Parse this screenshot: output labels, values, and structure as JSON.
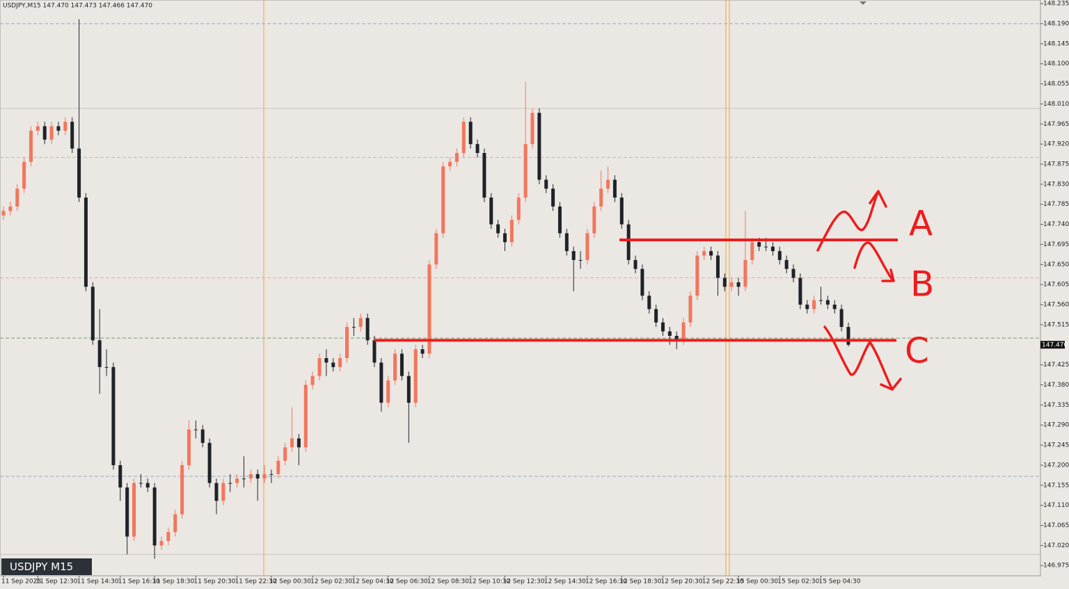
{
  "chart_data": {
    "type": "candlestick",
    "header": "USDJPY,M15 147.470 147.473 147.466 147.470",
    "symbol_label": "USDJPY M15",
    "up_color": "#f2765c",
    "down_color": "#1f2329",
    "ylim": [
      146.952,
      148.243
    ],
    "yticks": [
      148.235,
      {
        "value": 148.19,
        "label": "148.190"
      },
      148.145,
      {
        "value": 148.1,
        "label": "148.100"
      },
      148.055,
      {
        "value": 148.01,
        "label": "148.010"
      },
      147.965,
      {
        "value": 147.92,
        "label": "147.920"
      },
      147.875,
      {
        "value": 147.83,
        "label": "147.830"
      },
      147.785,
      {
        "value": 147.74,
        "label": "147.740"
      },
      147.695,
      {
        "value": 147.65,
        "label": "147.650"
      },
      147.605,
      {
        "value": 147.56,
        "label": "147.560"
      },
      147.515,
      147.425,
      {
        "value": 147.38,
        "label": "147.380"
      },
      147.335,
      {
        "value": 147.29,
        "label": "147.290"
      },
      147.245,
      {
        "value": 147.2,
        "label": "147.200"
      },
      147.155,
      {
        "value": 147.11,
        "label": "147.110"
      },
      147.065,
      {
        "value": 147.02,
        "label": "147.020"
      },
      146.975
    ],
    "current_price": {
      "value": 147.47,
      "label": "147.470"
    },
    "hlines": [
      {
        "value": 148.19,
        "color": "#8fa9c2",
        "dash": true
      },
      {
        "value": 148.0,
        "color": "#c9c4bf",
        "dash": false
      },
      {
        "value": 147.89,
        "color": "#e8a6b0",
        "dash": true
      },
      {
        "value": 147.62,
        "color": "#e8a6b0",
        "dash": true
      },
      {
        "value": 147.485,
        "color": "#6aa36a",
        "dash": true
      },
      {
        "value": 147.175,
        "color": "#8fa9c2",
        "dash": true
      },
      {
        "value": 147.0,
        "color": "#c9c4bf",
        "dash": false
      }
    ],
    "annotations": [
      {
        "label": "A",
        "value": 147.705
      },
      {
        "label": "B"
      },
      {
        "label": "C",
        "value": 147.48
      }
    ],
    "annotation_color": "#ee1c1c",
    "categories": [
      "11 Sep 2025",
      null,
      null,
      null,
      null,
      "11 Sep 12:30",
      null,
      null,
      null,
      null,
      null,
      "11 Sep 14:30",
      null,
      null,
      null,
      null,
      null,
      "11 Sep 16:30",
      null,
      null,
      null,
      null,
      "11 Sep 18:30",
      null,
      null,
      null,
      null,
      null,
      "11 Sep 20:30",
      null,
      null,
      null,
      null,
      null,
      "11 Sep 22:30",
      null,
      null,
      null,
      null,
      "12 Sep 00:30",
      null,
      null,
      null,
      null,
      null,
      "12 Sep 02:30",
      null,
      null,
      null,
      null,
      null,
      "12 Sep 04:30",
      null,
      null,
      null,
      null,
      "12 Sep 06:30",
      null,
      null,
      null,
      null,
      null,
      "12 Sep 08:30",
      null,
      null,
      null,
      null,
      null,
      "12 Sep 10:30",
      null,
      null,
      null,
      null,
      "12 Sep 12:30",
      null,
      null,
      null,
      null,
      null,
      "12 Sep 14:30",
      null,
      null,
      null,
      null,
      null,
      "12 Sep 16:30",
      null,
      null,
      null,
      null,
      "12 Sep 18:30",
      null,
      null,
      null,
      null,
      null,
      "12 Sep 20:30",
      null,
      null,
      null,
      null,
      null,
      "12 Sep 22:30",
      null,
      null,
      null,
      null,
      "15 Sep 00:30",
      null,
      null,
      null,
      null,
      null,
      "15 Sep 02:30",
      null,
      null,
      null,
      null,
      null,
      "15 Sep 04:30",
      null,
      null,
      null,
      null
    ],
    "ohlc": [
      [
        147.76,
        147.78,
        147.75,
        147.77
      ],
      [
        147.77,
        147.79,
        147.76,
        147.78
      ],
      [
        147.78,
        147.83,
        147.77,
        147.82
      ],
      [
        147.82,
        147.89,
        147.81,
        147.88
      ],
      [
        147.88,
        147.96,
        147.87,
        147.95
      ],
      [
        147.95,
        147.97,
        147.94,
        147.96
      ],
      [
        147.96,
        147.97,
        147.92,
        147.93
      ],
      [
        147.93,
        147.97,
        147.92,
        147.96
      ],
      [
        147.96,
        147.97,
        147.94,
        147.95
      ],
      [
        147.95,
        147.98,
        147.94,
        147.97
      ],
      [
        147.97,
        147.98,
        147.9,
        147.91
      ],
      [
        147.91,
        148.2,
        147.79,
        147.8
      ],
      [
        147.8,
        147.81,
        147.59,
        147.6
      ],
      [
        147.6,
        147.61,
        147.47,
        147.48
      ],
      [
        147.48,
        147.55,
        147.36,
        147.42
      ],
      [
        147.42,
        147.46,
        147.4,
        147.42
      ],
      [
        147.42,
        147.43,
        147.19,
        147.2
      ],
      [
        147.2,
        147.21,
        147.12,
        147.15
      ],
      [
        147.15,
        147.16,
        147.0,
        147.04
      ],
      [
        147.04,
        147.17,
        147.03,
        147.16
      ],
      [
        147.16,
        147.18,
        147.15,
        147.16
      ],
      [
        147.16,
        147.17,
        147.14,
        147.15
      ],
      [
        147.15,
        147.16,
        146.99,
        147.02
      ],
      [
        147.02,
        147.04,
        147.01,
        147.03
      ],
      [
        147.03,
        147.06,
        147.02,
        147.05
      ],
      [
        147.05,
        147.1,
        147.04,
        147.09
      ],
      [
        147.09,
        147.21,
        147.08,
        147.2
      ],
      [
        147.2,
        147.3,
        147.19,
        147.28
      ],
      [
        147.28,
        147.3,
        147.26,
        147.28
      ],
      [
        147.28,
        147.29,
        147.24,
        147.25
      ],
      [
        147.25,
        147.26,
        147.15,
        147.16
      ],
      [
        147.16,
        147.17,
        147.09,
        147.12
      ],
      [
        147.12,
        147.17,
        147.11,
        147.16
      ],
      [
        147.16,
        147.18,
        147.14,
        147.16
      ],
      [
        147.16,
        147.18,
        147.15,
        147.17
      ],
      [
        147.17,
        147.22,
        147.15,
        147.17
      ],
      [
        147.17,
        147.19,
        147.16,
        147.18
      ],
      [
        147.18,
        147.19,
        147.12,
        147.17
      ],
      [
        147.17,
        147.2,
        147.16,
        147.18
      ],
      [
        147.18,
        147.19,
        147.16,
        147.18
      ],
      [
        147.18,
        147.22,
        147.17,
        147.21
      ],
      [
        147.21,
        147.25,
        147.2,
        147.24
      ],
      [
        147.24,
        147.33,
        147.23,
        147.26
      ],
      [
        147.26,
        147.27,
        147.2,
        147.24
      ],
      [
        147.24,
        147.39,
        147.23,
        147.38
      ],
      [
        147.38,
        147.41,
        147.37,
        147.4
      ],
      [
        147.4,
        147.45,
        147.39,
        147.44
      ],
      [
        147.44,
        147.46,
        147.4,
        147.43
      ],
      [
        147.43,
        147.44,
        147.41,
        147.42
      ],
      [
        147.42,
        147.45,
        147.41,
        147.44
      ],
      [
        147.44,
        147.52,
        147.43,
        147.51
      ],
      [
        147.51,
        147.53,
        147.49,
        147.51
      ],
      [
        147.51,
        147.54,
        147.5,
        147.53
      ],
      [
        147.53,
        147.54,
        147.47,
        147.48
      ],
      [
        147.48,
        147.49,
        147.42,
        147.43
      ],
      [
        147.43,
        147.44,
        147.32,
        147.34
      ],
      [
        147.34,
        147.4,
        147.33,
        147.39
      ],
      [
        147.39,
        147.46,
        147.38,
        147.45
      ],
      [
        147.45,
        147.46,
        147.39,
        147.4
      ],
      [
        147.4,
        147.41,
        147.25,
        147.34
      ],
      [
        147.34,
        147.47,
        147.33,
        147.46
      ],
      [
        147.46,
        147.47,
        147.44,
        147.45
      ],
      [
        147.45,
        147.66,
        147.44,
        147.65
      ],
      [
        147.65,
        147.73,
        147.64,
        147.72
      ],
      [
        147.72,
        147.88,
        147.71,
        147.87
      ],
      [
        147.87,
        147.89,
        147.86,
        147.88
      ],
      [
        147.88,
        147.91,
        147.87,
        147.9
      ],
      [
        147.9,
        147.98,
        147.89,
        147.97
      ],
      [
        147.97,
        147.98,
        147.91,
        147.92
      ],
      [
        147.92,
        147.93,
        147.89,
        147.9
      ],
      [
        147.9,
        147.91,
        147.79,
        147.8
      ],
      [
        147.8,
        147.81,
        147.73,
        147.74
      ],
      [
        147.74,
        147.75,
        147.71,
        147.72
      ],
      [
        147.72,
        147.73,
        147.68,
        147.7
      ],
      [
        147.7,
        147.76,
        147.69,
        147.75
      ],
      [
        147.75,
        147.81,
        147.74,
        147.8
      ],
      [
        147.8,
        148.06,
        147.79,
        147.92
      ],
      [
        147.92,
        148.0,
        147.91,
        147.99
      ],
      [
        147.99,
        148.0,
        147.83,
        147.84
      ],
      [
        147.84,
        147.85,
        147.81,
        147.82
      ],
      [
        147.82,
        147.83,
        147.77,
        147.78
      ],
      [
        147.78,
        147.79,
        147.71,
        147.72
      ],
      [
        147.72,
        147.73,
        147.67,
        147.68
      ],
      [
        147.68,
        147.69,
        147.59,
        147.66
      ],
      [
        147.66,
        147.68,
        147.64,
        147.66
      ],
      [
        147.66,
        147.73,
        147.65,
        147.72
      ],
      [
        147.72,
        147.79,
        147.71,
        147.78
      ],
      [
        147.78,
        147.86,
        147.77,
        147.82
      ],
      [
        147.82,
        147.87,
        147.81,
        147.84
      ],
      [
        147.84,
        147.85,
        147.79,
        147.8
      ],
      [
        147.8,
        147.81,
        147.73,
        147.74
      ],
      [
        147.74,
        147.75,
        147.65,
        147.66
      ],
      [
        147.66,
        147.67,
        147.63,
        147.64
      ],
      [
        147.64,
        147.65,
        147.57,
        147.58
      ],
      [
        147.58,
        147.59,
        147.54,
        147.55
      ],
      [
        147.55,
        147.56,
        147.51,
        147.52
      ],
      [
        147.52,
        147.53,
        147.49,
        147.5
      ],
      [
        147.5,
        147.51,
        147.47,
        147.49
      ],
      [
        147.49,
        147.5,
        147.46,
        147.48
      ],
      [
        147.48,
        147.53,
        147.47,
        147.52
      ],
      [
        147.52,
        147.59,
        147.51,
        147.58
      ],
      [
        147.58,
        147.68,
        147.57,
        147.67
      ],
      [
        147.67,
        147.69,
        147.66,
        147.68
      ],
      [
        147.68,
        147.69,
        147.66,
        147.67
      ],
      [
        147.67,
        147.68,
        147.58,
        147.62
      ],
      [
        147.62,
        147.63,
        147.59,
        147.6
      ],
      [
        147.6,
        147.62,
        147.59,
        147.61
      ],
      [
        147.61,
        147.62,
        147.58,
        147.6
      ],
      [
        147.6,
        147.77,
        147.59,
        147.66
      ],
      [
        147.66,
        147.71,
        147.65,
        147.7
      ],
      [
        147.7,
        147.71,
        147.68,
        147.69
      ],
      [
        147.69,
        147.71,
        147.68,
        147.69
      ],
      [
        147.69,
        147.7,
        147.67,
        147.68
      ],
      [
        147.68,
        147.69,
        147.65,
        147.66
      ],
      [
        147.66,
        147.67,
        147.63,
        147.64
      ],
      [
        147.64,
        147.65,
        147.61,
        147.62
      ],
      [
        147.62,
        147.63,
        147.55,
        147.56
      ],
      [
        147.56,
        147.57,
        147.54,
        147.55
      ],
      [
        147.55,
        147.58,
        147.54,
        147.57
      ],
      [
        147.57,
        147.6,
        147.56,
        147.57
      ],
      [
        147.57,
        147.58,
        147.55,
        147.56
      ],
      [
        147.56,
        147.57,
        147.54,
        147.55
      ],
      [
        147.55,
        147.56,
        147.5,
        147.51
      ],
      [
        147.51,
        147.52,
        147.466,
        147.47
      ]
    ]
  }
}
